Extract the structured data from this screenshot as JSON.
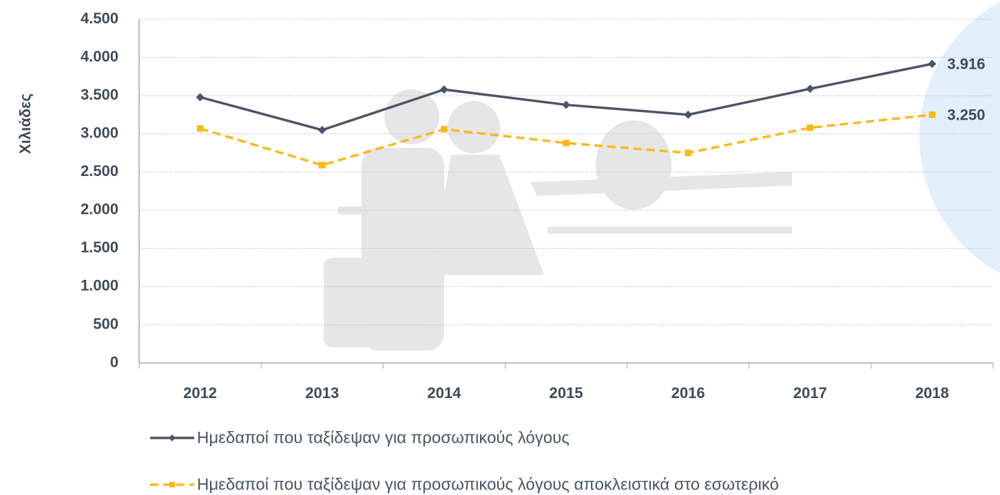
{
  "chart_data": {
    "type": "line",
    "y_label": "Χιλιάδες",
    "categories": [
      "2012",
      "2013",
      "2014",
      "2015",
      "2016",
      "2017",
      "2018"
    ],
    "series": [
      {
        "name": "Ημεδαποί που ταξίδεψαν για προσωπικούς λόγους",
        "color": "#4a5566",
        "line_style": "solid",
        "marker": "diamond",
        "values": [
          3480,
          3050,
          3580,
          3380,
          3250,
          3590,
          3916
        ],
        "value_labels": [
          null,
          null,
          null,
          null,
          null,
          null,
          "3.916"
        ]
      },
      {
        "name": "Ημεδαποί που ταξίδεψαν για προσωπικούς λόγους αποκλειστικά στο εσωτερικό",
        "color": "#fbb81a",
        "line_style": "dashed",
        "marker": "square",
        "values": [
          3070,
          2590,
          3060,
          2880,
          2750,
          3080,
          3250
        ],
        "value_labels": [
          null,
          null,
          null,
          null,
          null,
          null,
          "3.250"
        ]
      }
    ],
    "ylim": [
      0,
      4500
    ],
    "yticks": [
      0,
      500,
      {
        "value": 1000,
        "label": "1.000"
      },
      {
        "value": 1500,
        "label": "1.500"
      },
      {
        "value": 2000,
        "label": "2.000"
      },
      {
        "value": 2500,
        "label": "2.500"
      },
      {
        "value": 3000,
        "label": "3.000"
      },
      {
        "value": 3500,
        "label": "3.500"
      },
      {
        "value": 4000,
        "label": "4.000"
      },
      {
        "value": 4500,
        "label": "4.500"
      }
    ],
    "grid": true
  }
}
